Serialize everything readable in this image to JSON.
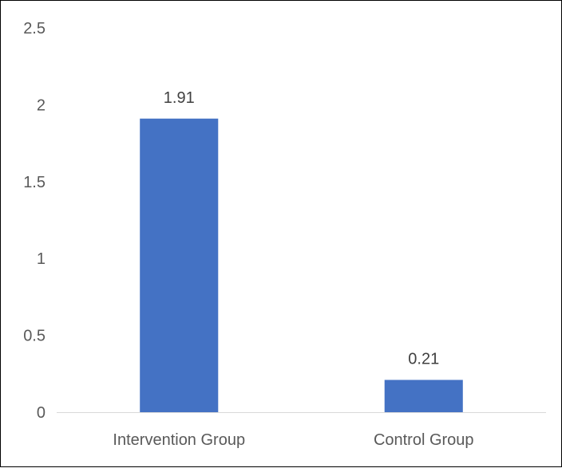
{
  "chart_data": {
    "type": "bar",
    "categories": [
      "Intervention Group",
      "Control Group"
    ],
    "values": [
      1.91,
      0.21
    ],
    "data_labels": [
      "1.91",
      "0.21"
    ],
    "yticks": [
      "0",
      "0.5",
      "1",
      "1.5",
      "2",
      "2.5"
    ],
    "ylim": [
      0,
      2.5
    ],
    "grid": false,
    "legend": "none",
    "bar_color": "#4472C4",
    "axis_color": "#D9D9D9"
  }
}
